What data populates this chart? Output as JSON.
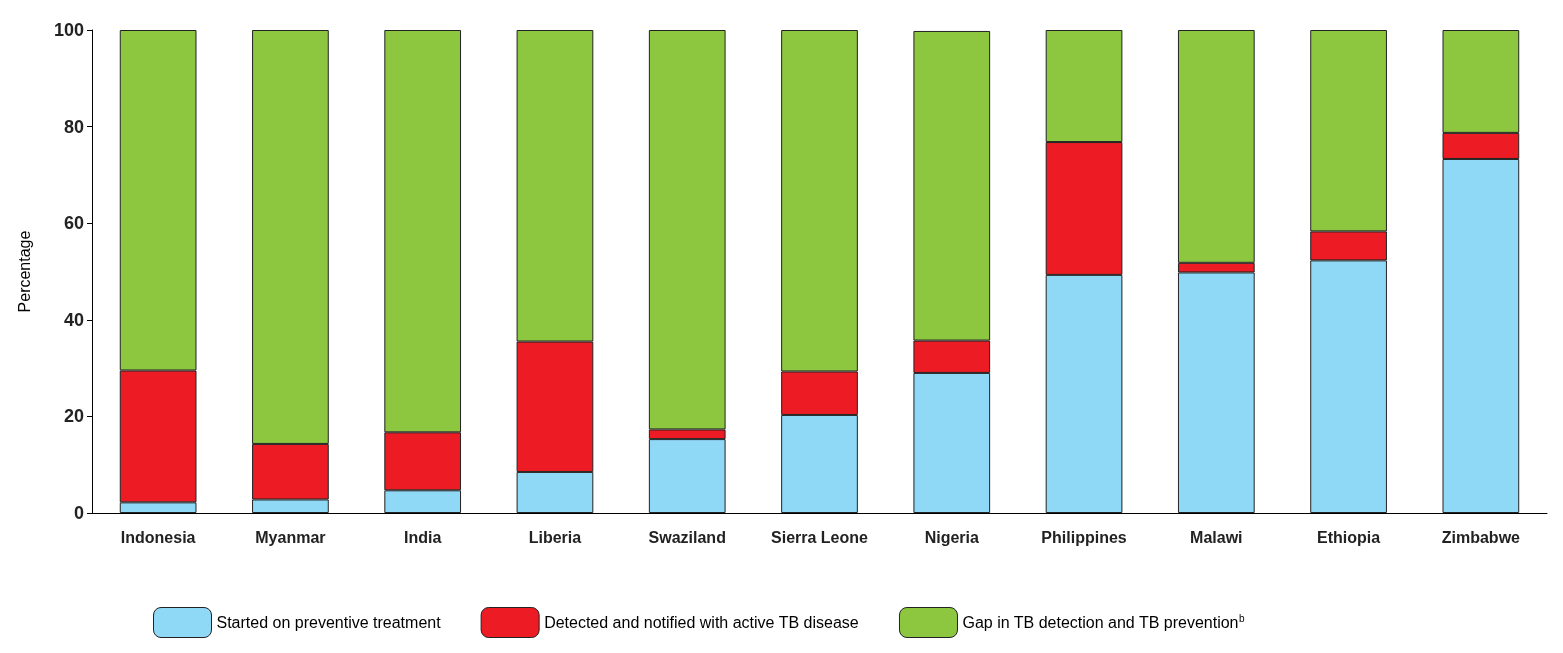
{
  "chart_data": {
    "type": "bar",
    "stacked": true,
    "ylabel": "Percentage",
    "categories": [
      "Indonesia",
      "Myanmar",
      "India",
      "Liberia",
      "Swaziland",
      "Sierra Leone",
      "Nigeria",
      "Philippines",
      "Malawi",
      "Ethiopia",
      "Zimbabwe"
    ],
    "series": [
      {
        "name": "Started on preventive treatment",
        "color": "#8fd8f6",
        "values": [
          2.2,
          2.8,
          4.7,
          8.5,
          15.3,
          20.3,
          29,
          49.3,
          49.8,
          52.3,
          73.3
        ]
      },
      {
        "name": "Detected and notified with active TB disease",
        "color": "#ed1c24",
        "values": [
          27.3,
          11.5,
          12,
          27,
          2,
          9,
          6.7,
          27.5,
          2,
          6,
          5.4
        ]
      },
      {
        "name": "Gap in TB detection and TB prevention$^{b}$",
        "color": "#8dc63f",
        "values": [
          70.5,
          85.7,
          83.3,
          64.5,
          82.7,
          70.7,
          64.1,
          23.2,
          48.2,
          41.7,
          21.3
        ]
      }
    ],
    "ylim": [
      0,
      100
    ],
    "yticks": [
      0,
      20,
      40,
      60,
      80,
      100
    ],
    "grid": false,
    "legend": "bottom"
  }
}
